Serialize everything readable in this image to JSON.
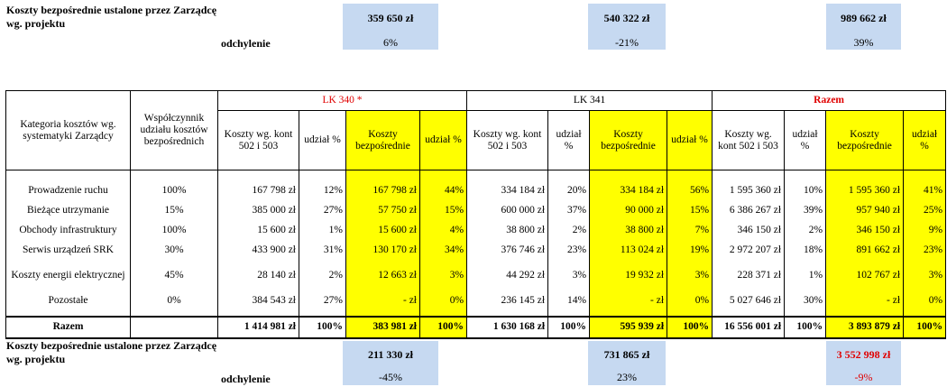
{
  "top_summary": {
    "label": "Koszty bezpośrednie ustalone przez Zarządcę wg. projektu",
    "values": [
      "359 650 zł",
      "540 322 zł",
      "989 662 zł"
    ],
    "deviation_label": "odchylenie",
    "deviations": [
      "6%",
      "-21%",
      "39%"
    ]
  },
  "table": {
    "category_header": "Kategoria kosztów wg. systematyki Zarządcy",
    "coef_header": "Współczynnik udziału kosztów bezpośrednich",
    "groups": [
      "LK 340 *",
      "LK 341",
      "Razem"
    ],
    "sub_headers": {
      "costs": "Koszty wg. kont 502 i 503",
      "share": "udział %",
      "direct": "Koszty bezpośrednie",
      "dshare": "udział %"
    },
    "rows": [
      {
        "cat": "Prowadzenie ruchu",
        "coef": "100%",
        "c1": "167 798 zł",
        "s1": "12%",
        "d1": "167 798 zł",
        "p1": "44%",
        "c2": "334 184 zł",
        "s2": "20%",
        "d2": "334 184 zł",
        "p2": "56%",
        "c3": "1 595 360 zł",
        "s3": "10%",
        "d3": "1 595 360 zł",
        "p3": "41%"
      },
      {
        "cat": "Bieżące utrzymanie",
        "coef": "15%",
        "c1": "385 000 zł",
        "s1": "27%",
        "d1": "57 750 zł",
        "p1": "15%",
        "c2": "600 000 zł",
        "s2": "37%",
        "d2": "90 000 zł",
        "p2": "15%",
        "c3": "6 386 267 zł",
        "s3": "39%",
        "d3": "957 940 zł",
        "p3": "25%"
      },
      {
        "cat": "Obchody infrastruktury",
        "coef": "100%",
        "c1": "15 600 zł",
        "s1": "1%",
        "d1": "15 600 zł",
        "p1": "4%",
        "c2": "38 800 zł",
        "s2": "2%",
        "d2": "38 800 zł",
        "p2": "7%",
        "c3": "346 150 zł",
        "s3": "2%",
        "d3": "346 150 zł",
        "p3": "9%"
      },
      {
        "cat": "Serwis urządzeń SRK",
        "coef": "30%",
        "c1": "433 900 zł",
        "s1": "31%",
        "d1": "130 170 zł",
        "p1": "34%",
        "c2": "376 746 zł",
        "s2": "23%",
        "d2": "113 024 zł",
        "p2": "19%",
        "c3": "2 972 207 zł",
        "s3": "18%",
        "d3": "891 662 zł",
        "p3": "23%"
      },
      {
        "cat": "Koszty energii elektrycznej",
        "coef": "45%",
        "c1": "28 140 zł",
        "s1": "2%",
        "d1": "12 663 zł",
        "p1": "3%",
        "c2": "44 292 zł",
        "s2": "3%",
        "d2": "19 932 zł",
        "p2": "3%",
        "c3": "228 371 zł",
        "s3": "1%",
        "d3": "102 767 zł",
        "p3": "3%"
      },
      {
        "cat": "Pozostałe",
        "coef": "0%",
        "c1": "384 543 zł",
        "s1": "27%",
        "d1": "-   zł",
        "p1": "0%",
        "c2": "236 145 zł",
        "s2": "14%",
        "d2": "-   zł",
        "p2": "0%",
        "c3": "5 027 646 zł",
        "s3": "30%",
        "d3": "-   zł",
        "p3": "0%"
      }
    ],
    "total": {
      "cat": "Razem",
      "c1": "1 414 981 zł",
      "s1": "100%",
      "d1": "383 981 zł",
      "p1": "100%",
      "c2": "1 630 168 zł",
      "s2": "100%",
      "d2": "595 939 zł",
      "p2": "100%",
      "c3": "16 556 001 zł",
      "s3": "100%",
      "d3": "3 893 879 zł",
      "p3": "100%"
    }
  },
  "bottom_summary": {
    "label": "Koszty bezpośrednie ustalone przez Zarządcę wg. projektu",
    "values": [
      "211 330 zł",
      "731 865 zł",
      "3 552 998 zł"
    ],
    "deviation_label": "odchylenie",
    "deviations": [
      "-45%",
      "23%",
      "-9%"
    ]
  },
  "colors": {
    "blue_fill": "#c6d9f1",
    "yellow_fill": "#ffff00",
    "red_text": "#e00000"
  }
}
